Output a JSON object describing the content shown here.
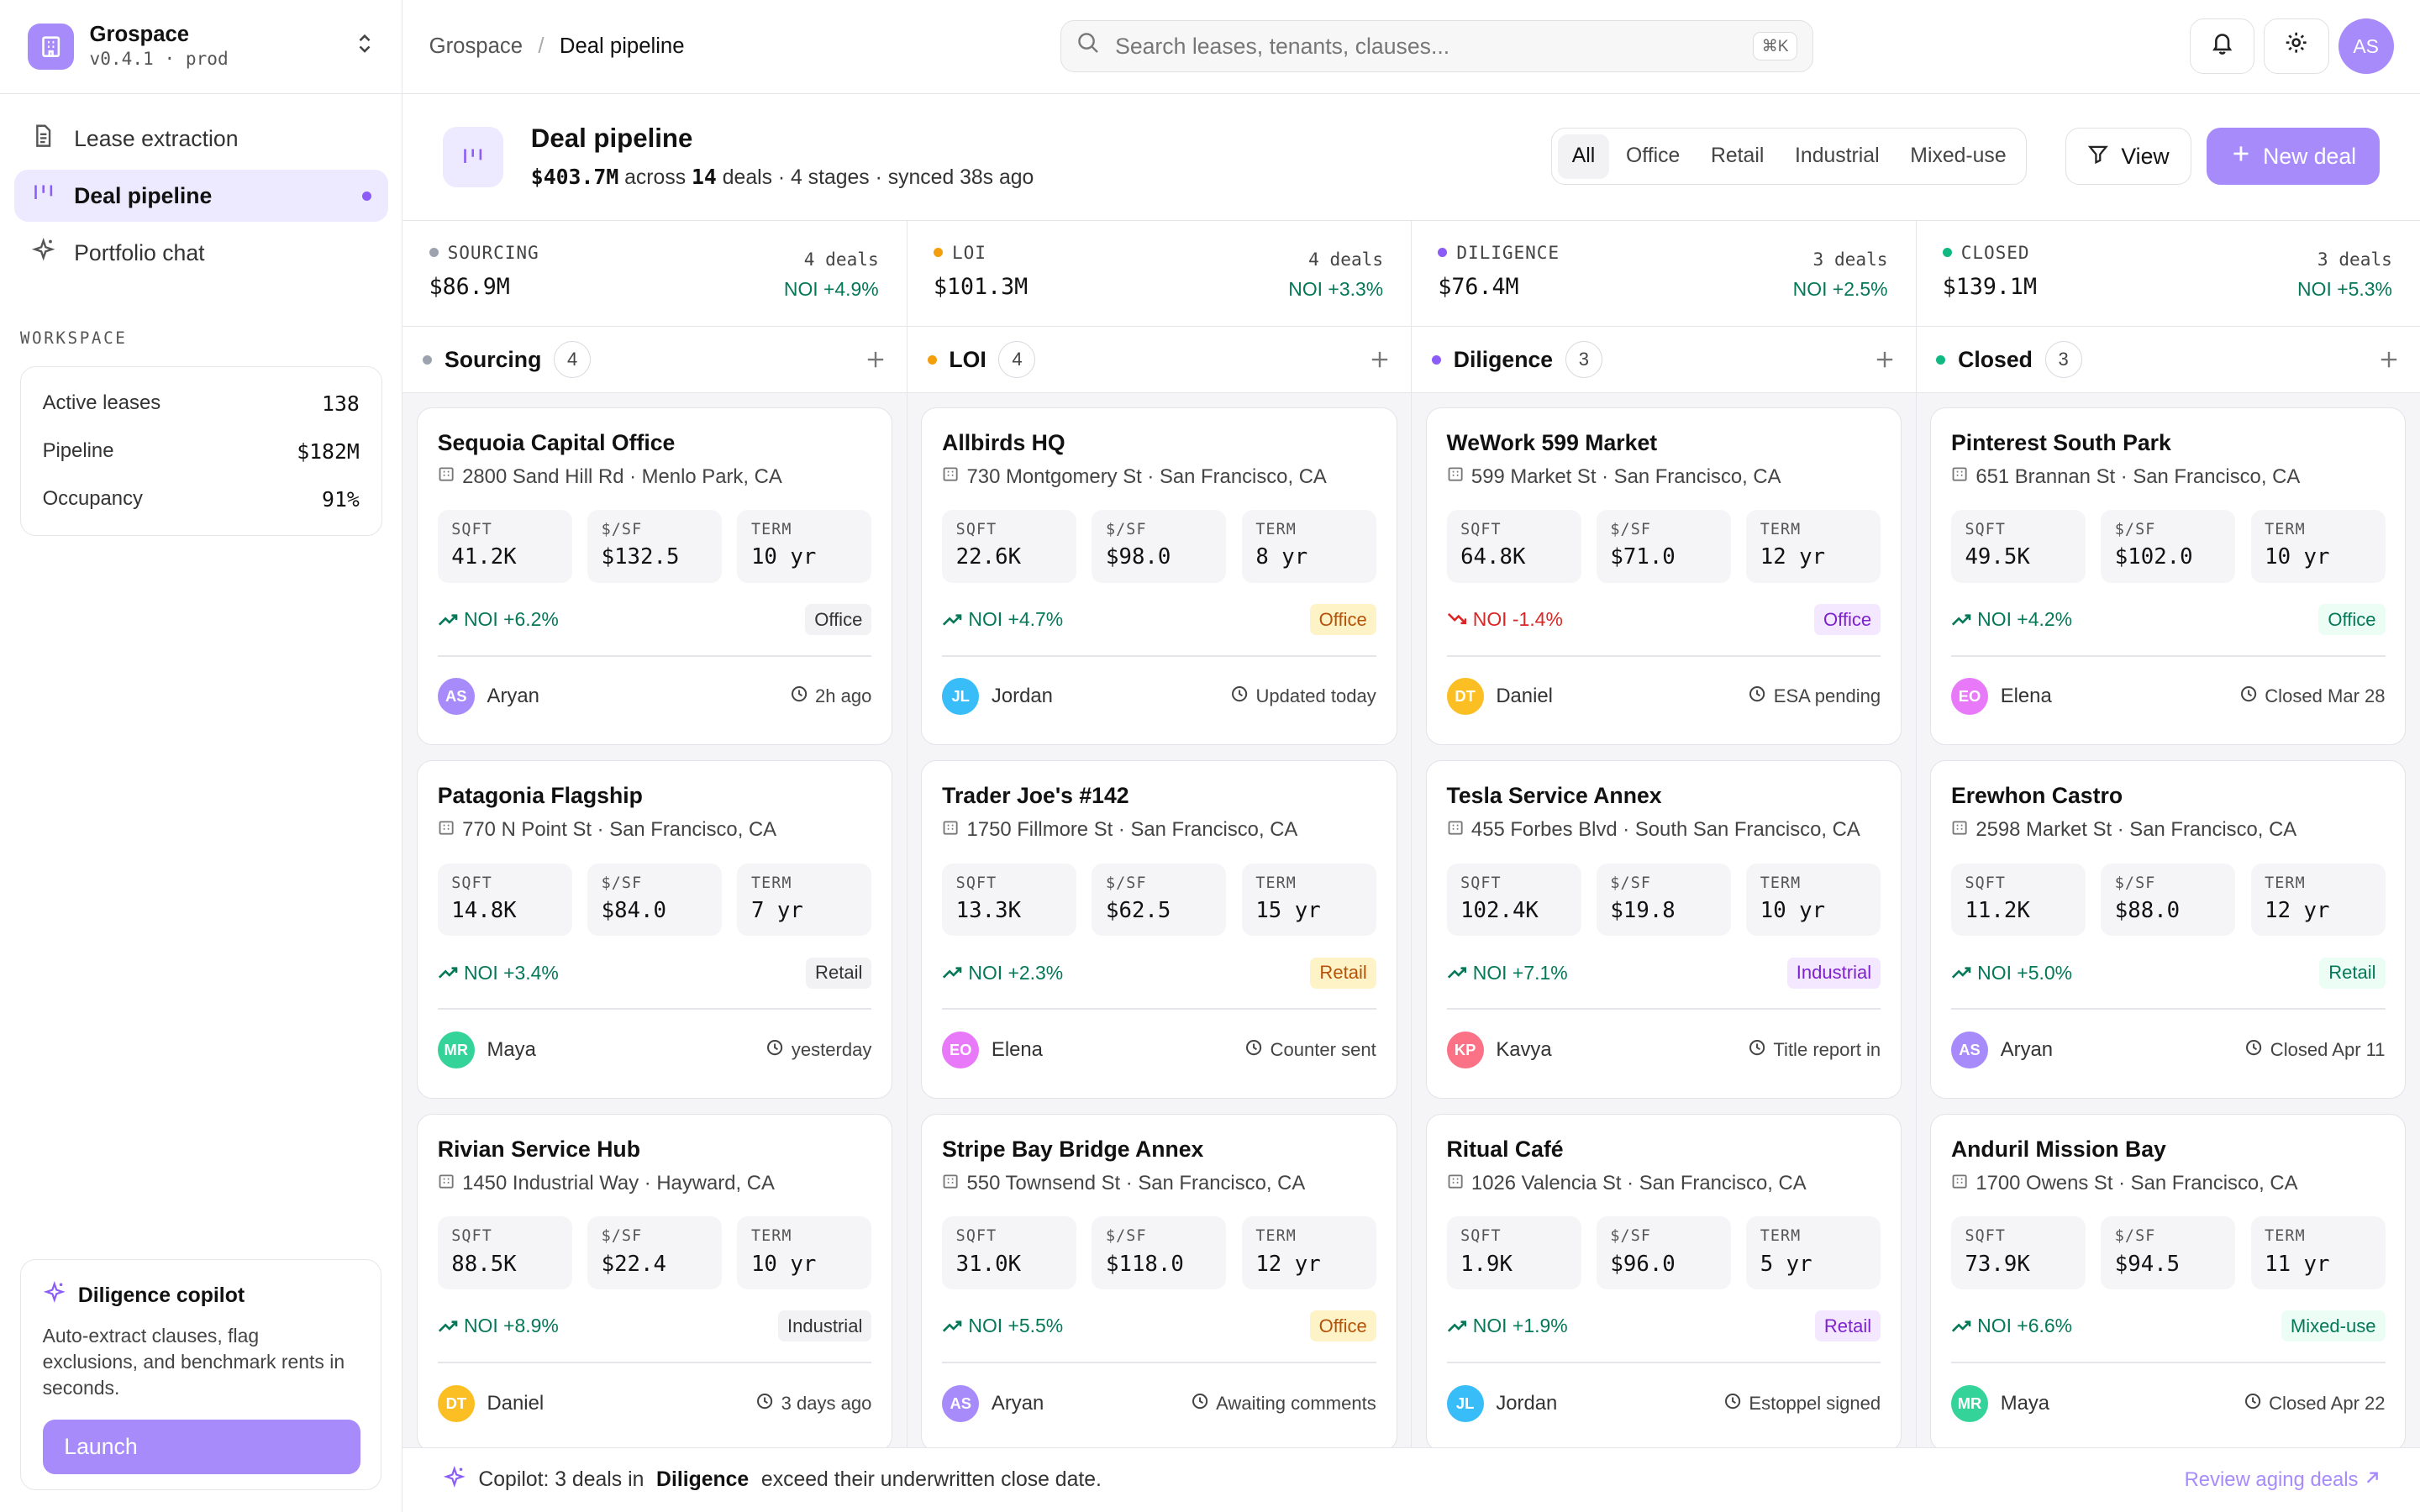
{
  "brand": {
    "name": "Grospace",
    "version": "v0.4.1 · prod"
  },
  "nav": [
    {
      "label": "Lease extraction",
      "icon": "document-icon"
    },
    {
      "label": "Deal pipeline",
      "icon": "pipeline-icon",
      "active": true
    },
    {
      "label": "Portfolio chat",
      "icon": "sparkle-icon"
    }
  ],
  "workspace": {
    "label": "WORKSPACE",
    "stats": [
      {
        "label": "Active leases",
        "value": "138"
      },
      {
        "label": "Pipeline",
        "value": "$182M"
      },
      {
        "label": "Occupancy",
        "value": "91%"
      }
    ]
  },
  "copilot_card": {
    "title": "Diligence copilot",
    "desc": "Auto-extract clauses, flag exclusions, and benchmark rents in seconds.",
    "button": "Launch"
  },
  "breadcrumb": {
    "root": "Grospace",
    "sep": "/",
    "current": "Deal pipeline"
  },
  "search": {
    "placeholder": "Search leases, tenants, clauses...",
    "shortcut": "⌘K"
  },
  "user": {
    "initials": "AS"
  },
  "header": {
    "title": "Deal pipeline",
    "total": "$403.7M",
    "t1": "across",
    "count": "14",
    "t2": "deals · 4 stages · synced 38s ago"
  },
  "filters": [
    "All",
    "Office",
    "Retail",
    "Industrial",
    "Mixed-use"
  ],
  "active_filter": "All",
  "view_label": "View",
  "new_deal_label": "New deal",
  "stages": [
    {
      "code": "SOURCING",
      "value": "$86.9M",
      "count": "4 deals",
      "noi": "NOI +4.9%",
      "color": "#9ca3af"
    },
    {
      "code": "LOI",
      "value": "$101.3M",
      "count": "4 deals",
      "noi": "NOI +3.3%",
      "color": "#f59e0b"
    },
    {
      "code": "DILIGENCE",
      "value": "$76.4M",
      "count": "3 deals",
      "noi": "NOI +2.5%",
      "color": "#8b5cf6"
    },
    {
      "code": "CLOSED",
      "value": "$139.1M",
      "count": "3 deals",
      "noi": "NOI +5.3%",
      "color": "#10b981"
    }
  ],
  "columns": [
    {
      "title": "Sourcing",
      "badge": "4",
      "color": "#9ca3af",
      "cards": [
        {
          "title": "Sequoia Capital Office",
          "addr": "2800 Sand Hill Rd · Menlo Park, CA",
          "sqft": "41.2K",
          "psf": "$132.5",
          "term": "10 yr",
          "noi": "NOI +6.2%",
          "noi_dir": "pos",
          "tag": "Office",
          "tag_bg": "#f2f2f4",
          "tag_fg": "#333",
          "av": "AS",
          "av_bg": "#a78bfa",
          "owner": "Aryan",
          "when": "2h ago"
        },
        {
          "title": "Patagonia Flagship",
          "addr": "770 N Point St · San Francisco, CA",
          "sqft": "14.8K",
          "psf": "$84.0",
          "term": "7 yr",
          "noi": "NOI +3.4%",
          "noi_dir": "pos",
          "tag": "Retail",
          "tag_bg": "#f2f2f4",
          "tag_fg": "#333",
          "av": "MR",
          "av_bg": "#34d399",
          "owner": "Maya",
          "when": "yesterday"
        },
        {
          "title": "Rivian Service Hub",
          "addr": "1450 Industrial Way · Hayward, CA",
          "sqft": "88.5K",
          "psf": "$22.4",
          "term": "10 yr",
          "noi": "NOI +8.9%",
          "noi_dir": "pos",
          "tag": "Industrial",
          "tag_bg": "#f2f2f4",
          "tag_fg": "#333",
          "av": "DT",
          "av_bg": "#fbbf24",
          "owner": "Daniel",
          "when": "3 days ago"
        }
      ]
    },
    {
      "title": "LOI",
      "badge": "4",
      "color": "#f59e0b",
      "cards": [
        {
          "title": "Allbirds HQ",
          "addr": "730 Montgomery St · San Francisco, CA",
          "sqft": "22.6K",
          "psf": "$98.0",
          "term": "8 yr",
          "noi": "NOI +4.7%",
          "noi_dir": "pos",
          "tag": "Office",
          "tag_bg": "#fef3c7",
          "tag_fg": "#b45309",
          "av": "JL",
          "av_bg": "#38bdf8",
          "owner": "Jordan",
          "when": "Updated today"
        },
        {
          "title": "Trader Joe's #142",
          "addr": "1750 Fillmore St · San Francisco, CA",
          "sqft": "13.3K",
          "psf": "$62.5",
          "term": "15 yr",
          "noi": "NOI +2.3%",
          "noi_dir": "pos",
          "tag": "Retail",
          "tag_bg": "#fef3c7",
          "tag_fg": "#b45309",
          "av": "EO",
          "av_bg": "#e879f9",
          "owner": "Elena",
          "when": "Counter sent"
        },
        {
          "title": "Stripe Bay Bridge Annex",
          "addr": "550 Townsend St · San Francisco, CA",
          "sqft": "31.0K",
          "psf": "$118.0",
          "term": "12 yr",
          "noi": "NOI +5.5%",
          "noi_dir": "pos",
          "tag": "Office",
          "tag_bg": "#fef3c7",
          "tag_fg": "#b45309",
          "av": "AS",
          "av_bg": "#a78bfa",
          "owner": "Aryan",
          "when": "Awaiting comments"
        }
      ]
    },
    {
      "title": "Diligence",
      "badge": "3",
      "color": "#8b5cf6",
      "cards": [
        {
          "title": "WeWork 599 Market",
          "addr": "599 Market St · San Francisco, CA",
          "sqft": "64.8K",
          "psf": "$71.0",
          "term": "12 yr",
          "noi": "NOI -1.4%",
          "noi_dir": "neg",
          "tag": "Office",
          "tag_bg": "#f3e8ff",
          "tag_fg": "#7e22ce",
          "av": "DT",
          "av_bg": "#fbbf24",
          "owner": "Daniel",
          "when": "ESA pending"
        },
        {
          "title": "Tesla Service Annex",
          "addr": "455 Forbes Blvd · South San Francisco, CA",
          "sqft": "102.4K",
          "psf": "$19.8",
          "term": "10 yr",
          "noi": "NOI +7.1%",
          "noi_dir": "pos",
          "tag": "Industrial",
          "tag_bg": "#f3e8ff",
          "tag_fg": "#7e22ce",
          "av": "KP",
          "av_bg": "#fb7185",
          "owner": "Kavya",
          "when": "Title report in"
        },
        {
          "title": "Ritual Café",
          "addr": "1026 Valencia St · San Francisco, CA",
          "sqft": "1.9K",
          "psf": "$96.0",
          "term": "5 yr",
          "noi": "NOI +1.9%",
          "noi_dir": "pos",
          "tag": "Retail",
          "tag_bg": "#f3e8ff",
          "tag_fg": "#7e22ce",
          "av": "JL",
          "av_bg": "#38bdf8",
          "owner": "Jordan",
          "when": "Estoppel signed"
        }
      ]
    },
    {
      "title": "Closed",
      "badge": "3",
      "color": "#10b981",
      "cards": [
        {
          "title": "Pinterest South Park",
          "addr": "651 Brannan St · San Francisco, CA",
          "sqft": "49.5K",
          "psf": "$102.0",
          "term": "10 yr",
          "noi": "NOI +4.2%",
          "noi_dir": "pos",
          "tag": "Office",
          "tag_bg": "#ecfdf5",
          "tag_fg": "#047857",
          "av": "EO",
          "av_bg": "#e879f9",
          "owner": "Elena",
          "when": "Closed Mar 28"
        },
        {
          "title": "Erewhon Castro",
          "addr": "2598 Market St · San Francisco, CA",
          "sqft": "11.2K",
          "psf": "$88.0",
          "term": "12 yr",
          "noi": "NOI +5.0%",
          "noi_dir": "pos",
          "tag": "Retail",
          "tag_bg": "#ecfdf5",
          "tag_fg": "#047857",
          "av": "AS",
          "av_bg": "#a78bfa",
          "owner": "Aryan",
          "when": "Closed Apr 11"
        },
        {
          "title": "Anduril Mission Bay",
          "addr": "1700 Owens St · San Francisco, CA",
          "sqft": "73.9K",
          "psf": "$94.5",
          "term": "11 yr",
          "noi": "NOI +6.6%",
          "noi_dir": "pos",
          "tag": "Mixed-use",
          "tag_bg": "#ecfdf5",
          "tag_fg": "#047857",
          "av": "MR",
          "av_bg": "#34d399",
          "owner": "Maya",
          "when": "Closed Apr 22"
        }
      ]
    }
  ],
  "metric_labels": {
    "sqft": "SQFT",
    "psf": "$/SF",
    "term": "TERM"
  },
  "bottom": {
    "pre": "Copilot: 3 deals in",
    "bold": "Diligence",
    "post": "exceed their underwritten close date.",
    "link": "Review aging deals"
  }
}
